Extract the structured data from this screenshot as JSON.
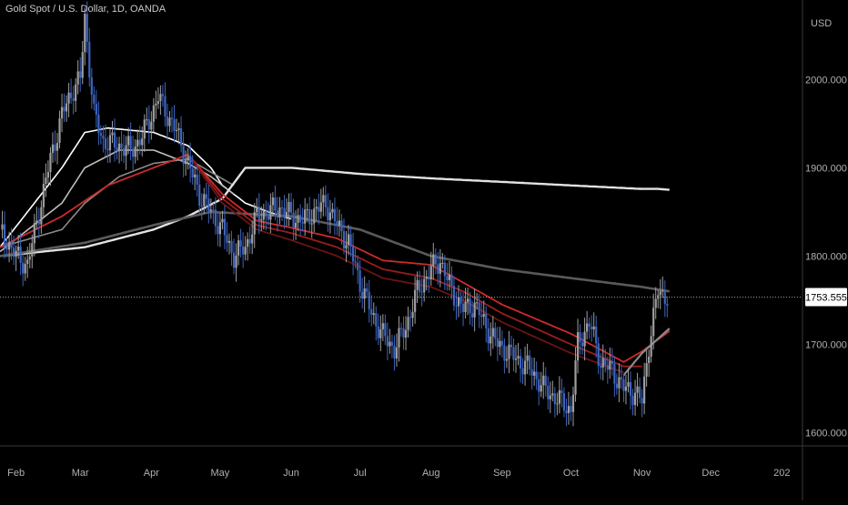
{
  "header": {
    "title": "Gold Spot / U.S. Dollar, 1D, OANDA"
  },
  "colors": {
    "background": "#000000",
    "candle_up": "#9e9e9e",
    "candle_down": "#3d64c0",
    "axis_text": "#b0b0b0",
    "price_line": "#9a9a9a",
    "ema_short": "#ffffff",
    "ema_mid": "#c0c0c0",
    "ema_long": "#8a8a8a",
    "ema_200": "#5a5a5a",
    "ema_down_1": "#d02a2a",
    "ema_down_2": "#9c1d1d",
    "ema_down_3": "#6a1414"
  },
  "chart_data": {
    "type": "line",
    "symbol": "Gold Spot / U.S. Dollar",
    "interval": "1D",
    "source": "OANDA",
    "price_unit": "USD",
    "last_price": 1753.555,
    "ylim": [
      1585,
      2090
    ],
    "y_ticks": [
      "2000.000",
      "1900.000",
      "1800.000",
      "1700.000",
      "1600.000"
    ],
    "y_tick_values": [
      2000,
      1900,
      1800,
      1700,
      1600
    ],
    "x_ticks": [
      "Feb",
      "Mar",
      "Apr",
      "May",
      "Jun",
      "Jul",
      "Aug",
      "Sep",
      "Oct",
      "Nov",
      "Dec",
      "202"
    ],
    "x_tick_days": [
      0,
      28,
      59,
      89,
      120,
      150,
      181,
      212,
      242,
      273,
      303,
      334
    ],
    "x_range_days": [
      -7,
      343
    ],
    "price_path_days": [
      -7,
      0,
      5,
      10,
      15,
      20,
      25,
      28,
      30,
      34,
      38,
      45,
      50,
      55,
      59,
      62,
      65,
      70,
      75,
      80,
      85,
      90,
      95,
      100,
      105,
      110,
      115,
      120,
      125,
      130,
      135,
      140,
      145,
      150,
      155,
      160,
      165,
      170,
      175,
      181,
      185,
      190,
      195,
      200,
      205,
      210,
      215,
      220,
      225,
      230,
      235,
      240,
      242,
      245,
      250,
      255,
      260,
      265,
      270,
      273,
      276,
      280,
      284
    ],
    "price_path_values": [
      1830,
      1800,
      1790,
      1850,
      1910,
      1960,
      1990,
      2000,
      2070,
      1960,
      1930,
      1925,
      1920,
      1935,
      1960,
      1980,
      1965,
      1940,
      1905,
      1870,
      1850,
      1830,
      1800,
      1810,
      1845,
      1850,
      1855,
      1845,
      1840,
      1850,
      1860,
      1835,
      1815,
      1770,
      1735,
      1710,
      1695,
      1720,
      1760,
      1785,
      1795,
      1760,
      1740,
      1745,
      1720,
      1700,
      1690,
      1680,
      1670,
      1650,
      1640,
      1630,
      1625,
      1700,
      1725,
      1680,
      1670,
      1650,
      1645,
      1635,
      1700,
      1760,
      1754
    ],
    "moving_averages": [
      {
        "days": [
          -7,
          20,
          30,
          40,
          60,
          75,
          85,
          90,
          100,
          110,
          120
        ],
        "values": [
          1810,
          1900,
          1940,
          1945,
          1940,
          1925,
          1900,
          1880,
          1860,
          1850,
          1842
        ]
      },
      {
        "days": [
          -7,
          20,
          30,
          45,
          60,
          75,
          85,
          95
        ],
        "values": [
          1805,
          1860,
          1900,
          1920,
          1920,
          1905,
          1890,
          1870
        ]
      },
      {
        "days": [
          -7,
          20,
          30,
          45,
          60,
          75,
          85,
          95
        ],
        "values": [
          1810,
          1830,
          1860,
          1890,
          1905,
          1910,
          1895,
          1880
        ]
      },
      {
        "days": [
          -7,
          30,
          60,
          75,
          90,
          100,
          120,
          150,
          181,
          212,
          242,
          273,
          280,
          285
        ],
        "values": [
          1800,
          1810,
          1830,
          1845,
          1865,
          1900,
          1900,
          1893,
          1888,
          1884,
          1880,
          1876,
          1876,
          1875
        ]
      },
      {
        "days": [
          -7,
          30,
          60,
          85,
          120,
          150,
          181,
          212,
          242,
          273,
          285
        ],
        "values": [
          1800,
          1815,
          1835,
          1850,
          1845,
          1830,
          1800,
          1785,
          1775,
          1765,
          1760
        ]
      },
      {
        "days": [
          -7,
          20,
          40,
          60,
          75,
          90,
          105,
          120,
          140,
          160,
          181,
          195,
          212,
          242,
          265,
          273,
          285
        ],
        "values": [
          1810,
          1845,
          1880,
          1900,
          1915,
          1870,
          1840,
          1832,
          1820,
          1795,
          1790,
          1770,
          1745,
          1712,
          1680,
          1692,
          1715
        ]
      },
      {
        "days": [
          75,
          90,
          105,
          120,
          140,
          160,
          181,
          195,
          212,
          242,
          265,
          273
        ],
        "values": [
          1915,
          1865,
          1835,
          1826,
          1810,
          1785,
          1775,
          1760,
          1735,
          1700,
          1675,
          1675
        ]
      },
      {
        "days": [
          75,
          90,
          105,
          120,
          140,
          160,
          181,
          195,
          212,
          242,
          265
        ],
        "values": [
          1915,
          1860,
          1830,
          1818,
          1800,
          1775,
          1765,
          1750,
          1725,
          1690,
          1668
        ]
      },
      {
        "days": [
          265,
          273,
          285
        ],
        "values": [
          1665,
          1690,
          1718
        ]
      }
    ]
  }
}
